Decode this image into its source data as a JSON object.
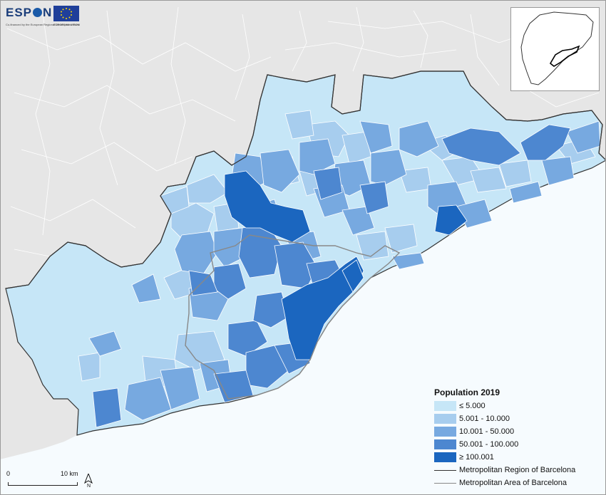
{
  "header": {
    "logo_text_1": "ESP",
    "logo_text_2": "N",
    "logo_subtitle": "Co-financed by the European Regional Development Fund",
    "eu_subtitle": "EUROPEAN UNION"
  },
  "colors": {
    "sea": "#f6fbfe",
    "land_outside": "#e6e6e6",
    "class_1": "#c6e6f7",
    "class_2": "#a7cdee",
    "class_3": "#77a9e0",
    "class_4": "#4d87d0",
    "class_5": "#1b66bf",
    "region_border": "#333333",
    "area_border": "#888888"
  },
  "legend": {
    "title": "Population 2019",
    "classes": [
      {
        "label": "≤ 5.000",
        "color": "#c6e6f7"
      },
      {
        "label": "5.001 - 10.000",
        "color": "#a7cdee"
      },
      {
        "label": "10.001 - 50.000",
        "color": "#77a9e0"
      },
      {
        "label": "50.001 - 100.000",
        "color": "#4d87d0"
      },
      {
        "label": "≥ 100.001",
        "color": "#1b66bf"
      }
    ],
    "lines": [
      {
        "label": "Metropolitan Region of Barcelona",
        "color": "#333333"
      },
      {
        "label": "Metropolitan Area of Barcelona",
        "color": "#888888"
      }
    ]
  },
  "scale": {
    "start_label": "0",
    "end_label": "10 km"
  },
  "north": {
    "label": "N",
    "icon": "north-arrow-icon"
  }
}
